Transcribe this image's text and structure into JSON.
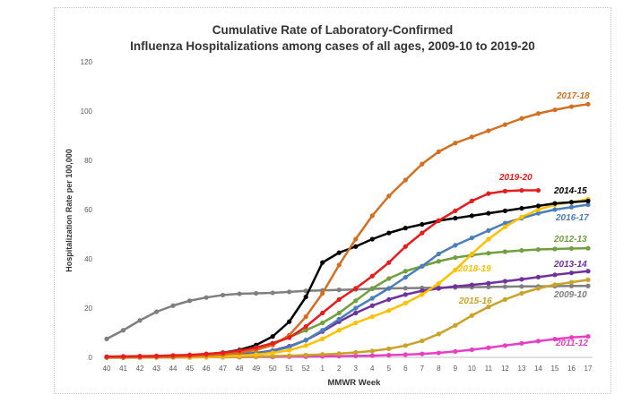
{
  "chart_data": {
    "type": "line",
    "title_line1": "Cumulative Rate of Laboratory-Confirmed",
    "title_line2": "Influenza Hospitalizations among cases of all ages, 2009-10 to 2019-20",
    "xlabel": "MMWR Week",
    "ylabel": "Hospitalization Rate per 100,000",
    "ylim": [
      0,
      120
    ],
    "yticks": [
      0,
      20,
      40,
      60,
      80,
      100,
      120
    ],
    "grid": false,
    "legend": "inline-labels",
    "categories": [
      "40",
      "41",
      "42",
      "43",
      "44",
      "45",
      "46",
      "47",
      "48",
      "49",
      "50",
      "51",
      "52",
      "1",
      "2",
      "3",
      "4",
      "5",
      "6",
      "7",
      "8",
      "9",
      "10",
      "11",
      "12",
      "13",
      "14",
      "15",
      "16",
      "17"
    ],
    "series": [
      {
        "name": "2009-10",
        "color": "#7f7f7f",
        "values": [
          7.5,
          11,
          15,
          18.5,
          21,
          23,
          24.3,
          25.3,
          25.8,
          26,
          26.2,
          26.6,
          27,
          27.2,
          27.4,
          27.6,
          27.8,
          28,
          28.1,
          28.2,
          28.3,
          28.4,
          28.5,
          28.6,
          28.7,
          28.8,
          28.8,
          28.9,
          29,
          29
        ]
      },
      {
        "name": "2011-12",
        "color": "#e83ec4",
        "values": [
          0,
          0,
          0,
          0,
          0,
          0,
          0.1,
          0.1,
          0.1,
          0.2,
          0.2,
          0.3,
          0.3,
          0.4,
          0.5,
          0.6,
          0.7,
          0.9,
          1.1,
          1.4,
          1.8,
          2.4,
          3.1,
          3.9,
          4.8,
          5.7,
          6.6,
          7.4,
          8.1,
          8.5
        ]
      },
      {
        "name": "2012-13",
        "color": "#70a03c",
        "values": [
          0,
          0,
          0.1,
          0.2,
          0.4,
          0.7,
          1.1,
          1.7,
          2.6,
          3.9,
          5.8,
          8.2,
          11,
          14,
          18,
          23,
          28,
          32,
          35,
          37,
          39,
          40.5,
          41.5,
          42.3,
          42.9,
          43.4,
          43.8,
          44,
          44.2,
          44.3
        ]
      },
      {
        "name": "2013-14",
        "color": "#7030a0",
        "values": [
          0,
          0,
          0.1,
          0.1,
          0.2,
          0.3,
          0.5,
          0.8,
          1.2,
          1.8,
          2.8,
          4.5,
          7,
          10.5,
          14.5,
          18,
          21,
          23.5,
          25.5,
          27,
          28,
          28.8,
          29.4,
          30.1,
          30.9,
          31.7,
          32.6,
          33.5,
          34.3,
          35
        ]
      },
      {
        "name": "2014-15",
        "color": "#000000",
        "values": [
          0,
          0,
          0.1,
          0.2,
          0.4,
          0.7,
          1.2,
          1.9,
          3,
          5,
          8.5,
          14.5,
          24.5,
          38.5,
          42.5,
          45,
          48,
          50.5,
          52.5,
          54,
          55.5,
          56.5,
          57.5,
          58.5,
          59.5,
          60.5,
          61.5,
          62.5,
          63,
          63.5
        ]
      },
      {
        "name": "2015-16",
        "color": "#c9a227",
        "values": [
          0,
          0,
          0,
          0,
          0,
          0,
          0.1,
          0.1,
          0.2,
          0.3,
          0.5,
          0.7,
          0.9,
          1.2,
          1.5,
          2,
          2.6,
          3.5,
          4.8,
          6.7,
          9.5,
          13,
          17,
          20.5,
          23.5,
          26,
          28,
          29.5,
          30.5,
          31.5
        ]
      },
      {
        "name": "2016-17",
        "color": "#4a7ebb",
        "values": [
          0,
          0,
          0,
          0,
          0.1,
          0.2,
          0.4,
          0.6,
          1,
          1.6,
          2.6,
          4.2,
          7,
          11,
          15.5,
          20,
          24,
          28,
          32.5,
          37,
          42,
          45.5,
          48.5,
          51.5,
          54.5,
          56.5,
          58.5,
          60,
          61,
          62
        ]
      },
      {
        "name": "2017-18",
        "color": "#d46f1f",
        "values": [
          0,
          0,
          0,
          0.1,
          0.2,
          0.4,
          0.7,
          1.1,
          1.8,
          3,
          5,
          9,
          16.5,
          26,
          37.5,
          48,
          57.5,
          65.5,
          72,
          78.5,
          83.5,
          87,
          89.5,
          92,
          94.5,
          97,
          99,
          100.5,
          101.8,
          102.8
        ]
      },
      {
        "name": "2018-19",
        "color": "#ffc000",
        "values": [
          0,
          0,
          0,
          0,
          0.1,
          0.1,
          0.2,
          0.4,
          0.7,
          1.1,
          1.8,
          2.9,
          4.8,
          7.5,
          11,
          14,
          16.5,
          19,
          22,
          25.5,
          30,
          35.5,
          42,
          48,
          53,
          57,
          60,
          62,
          63,
          64.2
        ]
      },
      {
        "name": "2019-20",
        "color": "#e81c1c",
        "values": [
          0.3,
          0.4,
          0.5,
          0.6,
          0.8,
          1,
          1.4,
          1.9,
          2.7,
          4,
          5.7,
          8,
          12.5,
          18,
          23.5,
          28,
          33,
          38.5,
          45,
          50.5,
          55.5,
          59.5,
          63.5,
          66.5,
          67.5,
          67.8,
          67.8,
          null,
          null,
          null
        ]
      }
    ],
    "series_labels": [
      {
        "name": "2017-18"
      },
      {
        "name": "2019-20"
      },
      {
        "name": "2014-15"
      },
      {
        "name": "2016-17"
      },
      {
        "name": "2012-13"
      },
      {
        "name": "2018-19"
      },
      {
        "name": "2013-14"
      },
      {
        "name": "2015-16"
      },
      {
        "name": "2009-10"
      },
      {
        "name": "2011-12"
      }
    ]
  }
}
